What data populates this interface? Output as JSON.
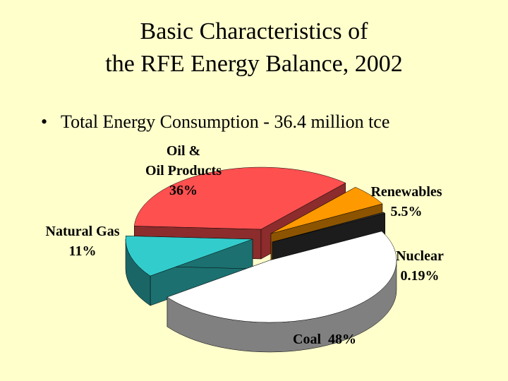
{
  "slide": {
    "title_line1": "Basic Characteristics of",
    "title_line2": "the RFE Energy Balance, 2002",
    "bullet_symbol": "•",
    "bullet_text": "Total Energy Consumption  - 36.4 million tce"
  },
  "chart_data": {
    "type": "pie",
    "title": "",
    "slices": [
      {
        "name": "Oil & Oil Products",
        "label_line1": "Oil &",
        "label_line2": "Oil Products",
        "value_label": "36%",
        "value": 36,
        "color": "#ff5050"
      },
      {
        "name": "Renewables",
        "label_line1": "Renewables",
        "value_label": "5.5%",
        "value": 5.5,
        "color": "#ff9900"
      },
      {
        "name": "Nuclear",
        "label_line1": "Nuclear",
        "value_label": "0.19%",
        "value": 0.19,
        "color": "#333333"
      },
      {
        "name": "Coal",
        "label_line1": "Coal",
        "value_label": "48%",
        "value": 48,
        "color": "#ffffff"
      },
      {
        "name": "Natural Gas",
        "label_line1": "Natural Gas",
        "value_label": "11%",
        "value": 11,
        "color": "#33cccc"
      }
    ]
  }
}
